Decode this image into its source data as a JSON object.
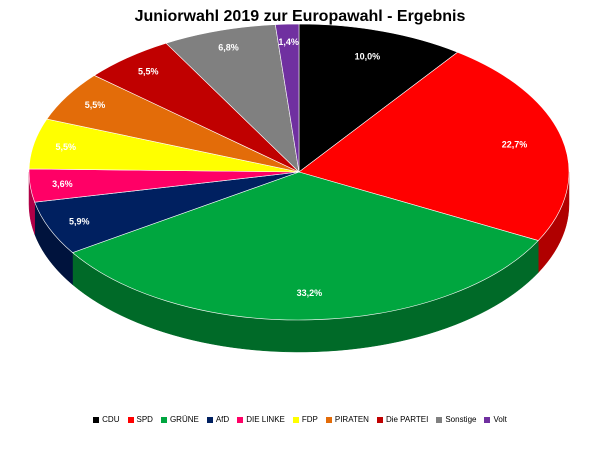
{
  "chart_data": {
    "type": "pie",
    "title": "Juniorwahl 2019 zur Europawahl - Ergebnis",
    "legend_position": "bottom",
    "slices": [
      {
        "name": "CDU",
        "value": 10.0,
        "label": "10,0%",
        "color": "#000000",
        "side_color": "#000000",
        "label_color": "#ffffff"
      },
      {
        "name": "SPD",
        "value": 22.7,
        "label": "22,7%",
        "color": "#ff0000",
        "side_color": "#b00000",
        "label_color": "#ffffff"
      },
      {
        "name": "GRÜNE",
        "value": 33.2,
        "label": "33,2%",
        "color": "#00a63f",
        "side_color": "#006a28",
        "label_color": "#ffffff"
      },
      {
        "name": "AfD",
        "value": 5.9,
        "label": "5,9%",
        "color": "#002060",
        "side_color": "#00133d",
        "label_color": "#ffffff"
      },
      {
        "name": "DIE LINKE",
        "value": 3.6,
        "label": "3,6%",
        "color": "#ff0066",
        "side_color": "#b00047",
        "label_color": "#ffffff"
      },
      {
        "name": "FDP",
        "value": 5.5,
        "label": "5,5%",
        "color": "#ffff00",
        "side_color": "#b3b300",
        "label_color": "#ffffff"
      },
      {
        "name": "PIRATEN",
        "value": 5.5,
        "label": "5,5%",
        "color": "#e36c09",
        "side_color": "#a04b05",
        "label_color": "#ffffff"
      },
      {
        "name": "Die PARTEI",
        "value": 5.5,
        "label": "5,5%",
        "color": "#c00000",
        "side_color": "#800000",
        "label_color": "#ffffff"
      },
      {
        "name": "Sonstige",
        "value": 6.8,
        "label": "6,8%",
        "color": "#808080",
        "side_color": "#555555",
        "label_color": "#ffffff"
      },
      {
        "name": "Volt",
        "value": 1.4,
        "label": "1,4%",
        "color": "#7030a0",
        "side_color": "#4a1f6b",
        "label_color": "#ffffff"
      }
    ]
  }
}
